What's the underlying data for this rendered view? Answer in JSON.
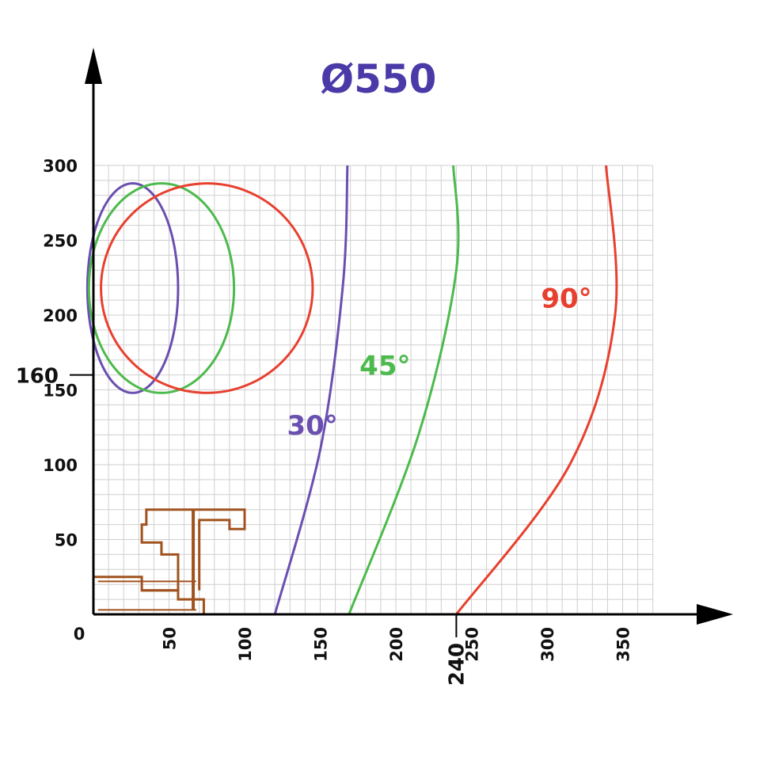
{
  "chart_data": {
    "type": "line",
    "title": "Ø550",
    "xlabel": "",
    "ylabel": "",
    "xlim": [
      0,
      370
    ],
    "ylim": [
      0,
      300
    ],
    "grid": true,
    "grid_step": 10,
    "x_ticks": [
      {
        "value": 0,
        "label": "0"
      },
      {
        "value": 50,
        "label": "50"
      },
      {
        "value": 100,
        "label": "100"
      },
      {
        "value": 150,
        "label": "150"
      },
      {
        "value": 200,
        "label": "200"
      },
      {
        "value": 250,
        "label": "250"
      },
      {
        "value": 300,
        "label": "300"
      },
      {
        "value": 350,
        "label": "350"
      }
    ],
    "y_ticks": [
      {
        "value": 50,
        "label": "50"
      },
      {
        "value": 100,
        "label": "100"
      },
      {
        "value": 150,
        "label": "150"
      },
      {
        "value": 200,
        "label": "200"
      },
      {
        "value": 250,
        "label": "250"
      },
      {
        "value": 300,
        "label": "300"
      }
    ],
    "x_marker": {
      "value": 240,
      "label": "240"
    },
    "y_marker": {
      "value": 160,
      "label": "160"
    },
    "series": [
      {
        "name": "30°",
        "color": "#6a4fb0",
        "arc": [
          [
            120,
            0
          ],
          [
            150,
            110
          ],
          [
            165,
            220
          ],
          [
            168,
            300
          ]
        ],
        "ellipse": {
          "center": [
            26,
            218
          ],
          "radius": [
            30,
            70
          ]
        },
        "label_anchor": [
          128,
          120
        ]
      },
      {
        "name": "45°",
        "color": "#4cba4c",
        "arc": [
          [
            169,
            0
          ],
          [
            215,
            120
          ],
          [
            240,
            230
          ],
          [
            238,
            300
          ]
        ],
        "ellipse": {
          "center": [
            45,
            218
          ],
          "radius": [
            48,
            70
          ]
        },
        "label_anchor": [
          176,
          160
        ]
      },
      {
        "name": "90°",
        "color": "#e8402e",
        "arc": [
          [
            240,
            0
          ],
          [
            315,
            100
          ],
          [
            345,
            200
          ],
          [
            339,
            300
          ]
        ],
        "ellipse": {
          "center": [
            75,
            218
          ],
          "radius": [
            70,
            70
          ]
        },
        "label_anchor": [
          296,
          205
        ]
      }
    ],
    "profile": {
      "color": "#a0521e",
      "outline": [
        [
          0,
          0
        ],
        [
          73,
          0
        ],
        [
          73,
          10
        ],
        [
          56,
          10
        ],
        [
          56,
          16
        ],
        [
          32,
          16
        ],
        [
          32,
          25
        ],
        [
          0,
          25
        ],
        [
          0,
          0
        ]
      ],
      "outline2": [
        [
          32,
          16
        ],
        [
          56,
          16
        ],
        [
          56,
          40
        ],
        [
          45,
          40
        ],
        [
          45,
          48
        ],
        [
          32,
          48
        ],
        [
          32,
          60
        ],
        [
          35,
          60
        ],
        [
          35,
          70
        ],
        [
          100,
          70
        ],
        [
          100,
          57
        ],
        [
          90,
          57
        ],
        [
          90,
          63
        ],
        [
          70,
          63
        ],
        [
          70,
          16
        ]
      ]
    }
  }
}
